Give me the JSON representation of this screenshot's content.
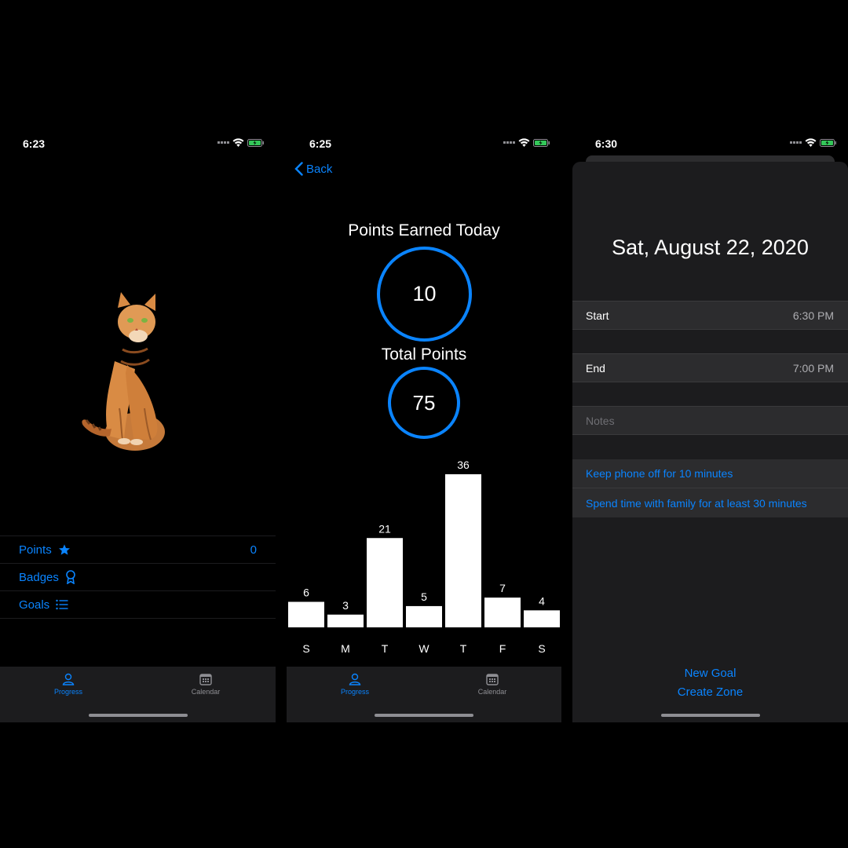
{
  "phone1": {
    "status_time": "6:23",
    "menu": {
      "points_label": "Points",
      "points_value": "0",
      "badges_label": "Badges",
      "goals_label": "Goals"
    },
    "tabs": {
      "progress": "Progress",
      "calendar": "Calendar"
    }
  },
  "phone2": {
    "status_time": "6:25",
    "back_label": "Back",
    "points_today_title": "Points Earned Today",
    "points_today_value": "10",
    "total_points_title": "Total Points",
    "total_points_value": "75",
    "tabs": {
      "progress": "Progress",
      "calendar": "Calendar"
    }
  },
  "phone3": {
    "status_time": "6:30",
    "date_title": "Sat, August 22, 2020",
    "start_label": "Start",
    "start_value": "6:30 PM",
    "end_label": "End",
    "end_value": "7:00 PM",
    "notes_placeholder": "Notes",
    "goals": [
      "Keep phone off for 10 minutes",
      "Spend time with family for at least 30 minutes"
    ],
    "new_goal_label": "New Goal",
    "create_zone_label": "Create Zone"
  },
  "colors": {
    "accent": "#0a84ff",
    "background": "#000000",
    "tabbar": "#1c1c1e",
    "battery": "#34c759"
  },
  "chart_data": {
    "type": "bar",
    "categories": [
      "S",
      "M",
      "T",
      "W",
      "T",
      "F",
      "S"
    ],
    "values": [
      6,
      3,
      21,
      5,
      36,
      7,
      4
    ],
    "ylim": [
      0,
      36
    ],
    "grid": false
  }
}
